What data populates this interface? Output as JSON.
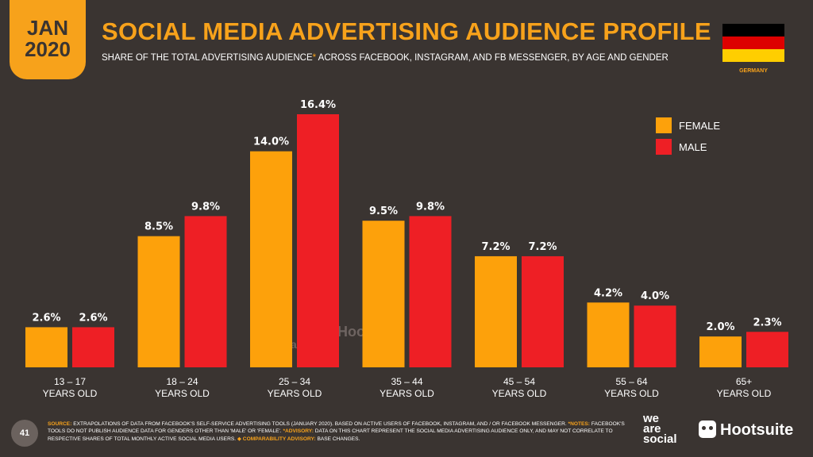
{
  "header": {
    "month": "JAN",
    "year": "2020",
    "title": "SOCIAL MEDIA ADVERTISING AUDIENCE PROFILE",
    "subtitle_pre": "SHARE OF THE TOTAL ADVERTISING AUDIENCE",
    "subtitle_star": "*",
    "subtitle_post": " ACROSS FACEBOOK, INSTAGRAM, AND FB MESSENGER, BY AGE AND GENDER",
    "country": "GERMANY"
  },
  "flag_colors": [
    "#000000",
    "#dd0000",
    "#ffce00"
  ],
  "colors": {
    "accent": "#f7a21b",
    "female": "#fda10b",
    "male": "#ee1f25",
    "background": "#3a3431"
  },
  "chart_data": {
    "type": "bar",
    "categories": [
      "13 – 17",
      "18 – 24",
      "25 – 34",
      "35 – 44",
      "45 – 54",
      "55 – 64",
      "65+"
    ],
    "category_sublabel": "YEARS OLD",
    "series": [
      {
        "name": "FEMALE",
        "color": "#fda10b",
        "values": [
          2.6,
          8.5,
          14.0,
          9.5,
          7.2,
          4.2,
          2.0
        ]
      },
      {
        "name": "MALE",
        "color": "#ee1f25",
        "values": [
          2.6,
          9.8,
          16.4,
          9.8,
          7.2,
          4.0,
          2.3
        ]
      }
    ],
    "value_suffix": "%",
    "ylim": [
      0,
      16.4
    ],
    "grid": false,
    "legend": "top-right"
  },
  "watermark": {
    "was": [
      "we",
      "are",
      "social"
    ],
    "hootsuite": "Hootsuite"
  },
  "footer": {
    "page_number": "41",
    "source_label": "SOURCE:",
    "source_text": " EXTRAPOLATIONS OF DATA FROM FACEBOOK'S SELF-SERVICE ADVERTISING TOOLS (JANUARY 2020). BASED ON ACTIVE USERS OF FACEBOOK, INSTAGRAM, AND / OR FACEBOOK MESSENGER. ",
    "notes_label": "*NOTES:",
    "notes_text": " FACEBOOK'S TOOLS DO NOT PUBLISH AUDIENCE DATA FOR GENDERS OTHER THAN 'MALE' OR 'FEMALE'. ",
    "advisory_label": "*ADVISORY:",
    "advisory_text": " DATA ON THIS CHART REPRESENT THE SOCIAL MEDIA ADVERTISING AUDIENCE ONLY, AND MAY NOT CORRELATE TO RESPECTIVE SHARES OF TOTAL MONTHLY ACTIVE SOCIAL MEDIA USERS. ",
    "comparability_label": "◆ COMPARABILITY ADVISORY:",
    "comparability_text": " BASE CHANGES.",
    "logo_was": [
      "we",
      "are",
      "social"
    ],
    "logo_hootsuite": "Hootsuite"
  }
}
